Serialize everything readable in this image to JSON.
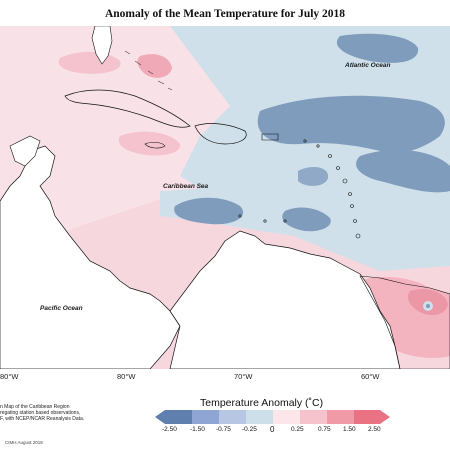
{
  "title": "Anomaly of the Mean Temperature for July 2018",
  "map": {
    "labels": {
      "atlantic": "Atlantic Ocean",
      "caribbean": "Caribbean Sea",
      "pacific": "Pacific Ocean"
    },
    "longitude_ticks": [
      "80°W",
      "80°W",
      "70°W",
      "60°W"
    ]
  },
  "notes": {
    "line1": "n Map of the Caribbean Region",
    "line2": "regating station based observations,",
    "line3": "F, with NCEP/NCAR Reanalysis Data."
  },
  "legend": {
    "title": "Temperature Anomaly (˚C)",
    "ticks": [
      "-2.50",
      "-1.50",
      "-0.75",
      "-0.25",
      "0",
      "0.25",
      "0.75",
      "1.50",
      "2.50"
    ],
    "colors": [
      "#5f7fae",
      "#8fa5d4",
      "#b7c6e3",
      "#cde0e9",
      "#ffffff",
      "#fde6ea",
      "#f6c2cc",
      "#f09aa8",
      "#e97383"
    ]
  },
  "credit": "CIMH August 2018"
}
